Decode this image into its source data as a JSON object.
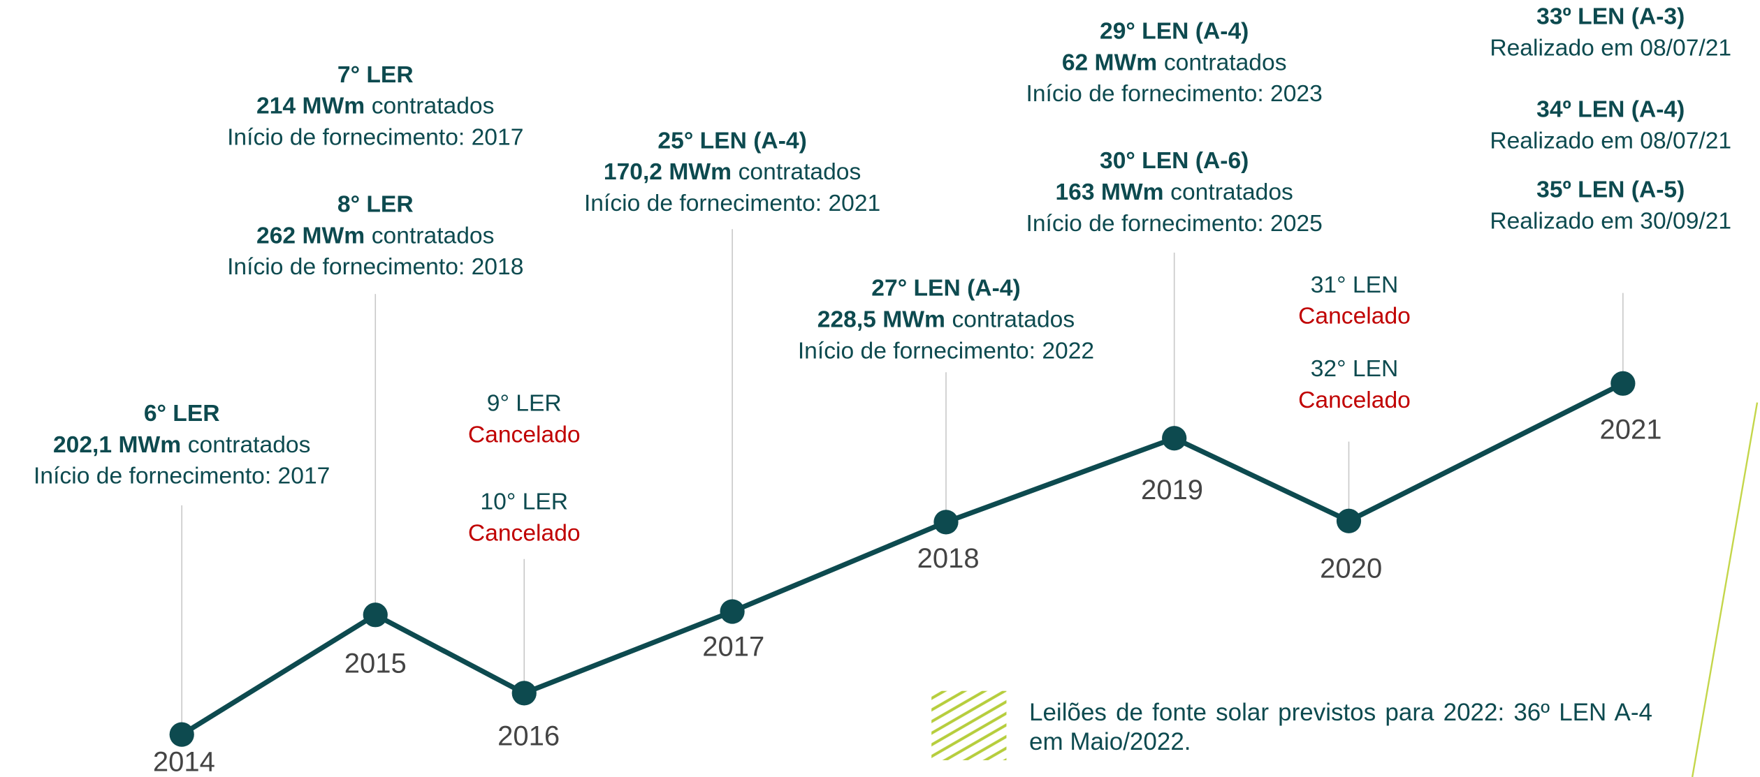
{
  "timeline": [
    {
      "year": "2014",
      "events": [
        {
          "title": "6° LER",
          "amount": "202,1 MWm",
          "amount_suffix": "contratados",
          "detail": "Início de fornecimento: 2017"
        }
      ]
    },
    {
      "year": "2015",
      "events": [
        {
          "title": "7° LER",
          "amount": "214 MWm",
          "amount_suffix": "contratados",
          "detail": "Início de fornecimento: 2017"
        },
        {
          "title": "8° LER",
          "amount": "262 MWm",
          "amount_suffix": "contratados",
          "detail": "Início de fornecimento: 2018"
        }
      ]
    },
    {
      "year": "2016",
      "events": [
        {
          "title": "9° LER",
          "status": "Cancelado"
        },
        {
          "title": "10° LER",
          "status": "Cancelado"
        }
      ]
    },
    {
      "year": "2017",
      "events": [
        {
          "title": "25° LEN (A-4)",
          "amount": "170,2 MWm",
          "amount_suffix": "contratados",
          "detail": "Início de fornecimento: 2021"
        }
      ]
    },
    {
      "year": "2018",
      "events": [
        {
          "title": "27° LEN (A-4)",
          "amount": "228,5 MWm",
          "amount_suffix": "contratados",
          "detail": "Início de fornecimento: 2022"
        }
      ]
    },
    {
      "year": "2019",
      "events": [
        {
          "title": "29° LEN (A-4)",
          "amount": "62 MWm",
          "amount_suffix": "contratados",
          "detail": "Início de fornecimento: 2023"
        },
        {
          "title": "30° LEN (A-6)",
          "amount": "163 MWm",
          "amount_suffix": "contratados",
          "detail": "Início de fornecimento: 2025"
        }
      ]
    },
    {
      "year": "2020",
      "events": [
        {
          "title": "31° LEN",
          "status": "Cancelado"
        },
        {
          "title": "32° LEN",
          "status": "Cancelado"
        }
      ]
    },
    {
      "year": "2021",
      "events": [
        {
          "title": "33º LEN (A-3)",
          "detail": "Realizado em 08/07/21"
        },
        {
          "title": "34º LEN (A-4)",
          "detail": "Realizado em 08/07/21"
        },
        {
          "title": "35º LEN (A-5)",
          "detail": "Realizado em 30/09/21"
        }
      ]
    }
  ],
  "note": "Leilões de fonte solar previstos para 2022: 36º LEN A-4 em Maio/2022."
}
